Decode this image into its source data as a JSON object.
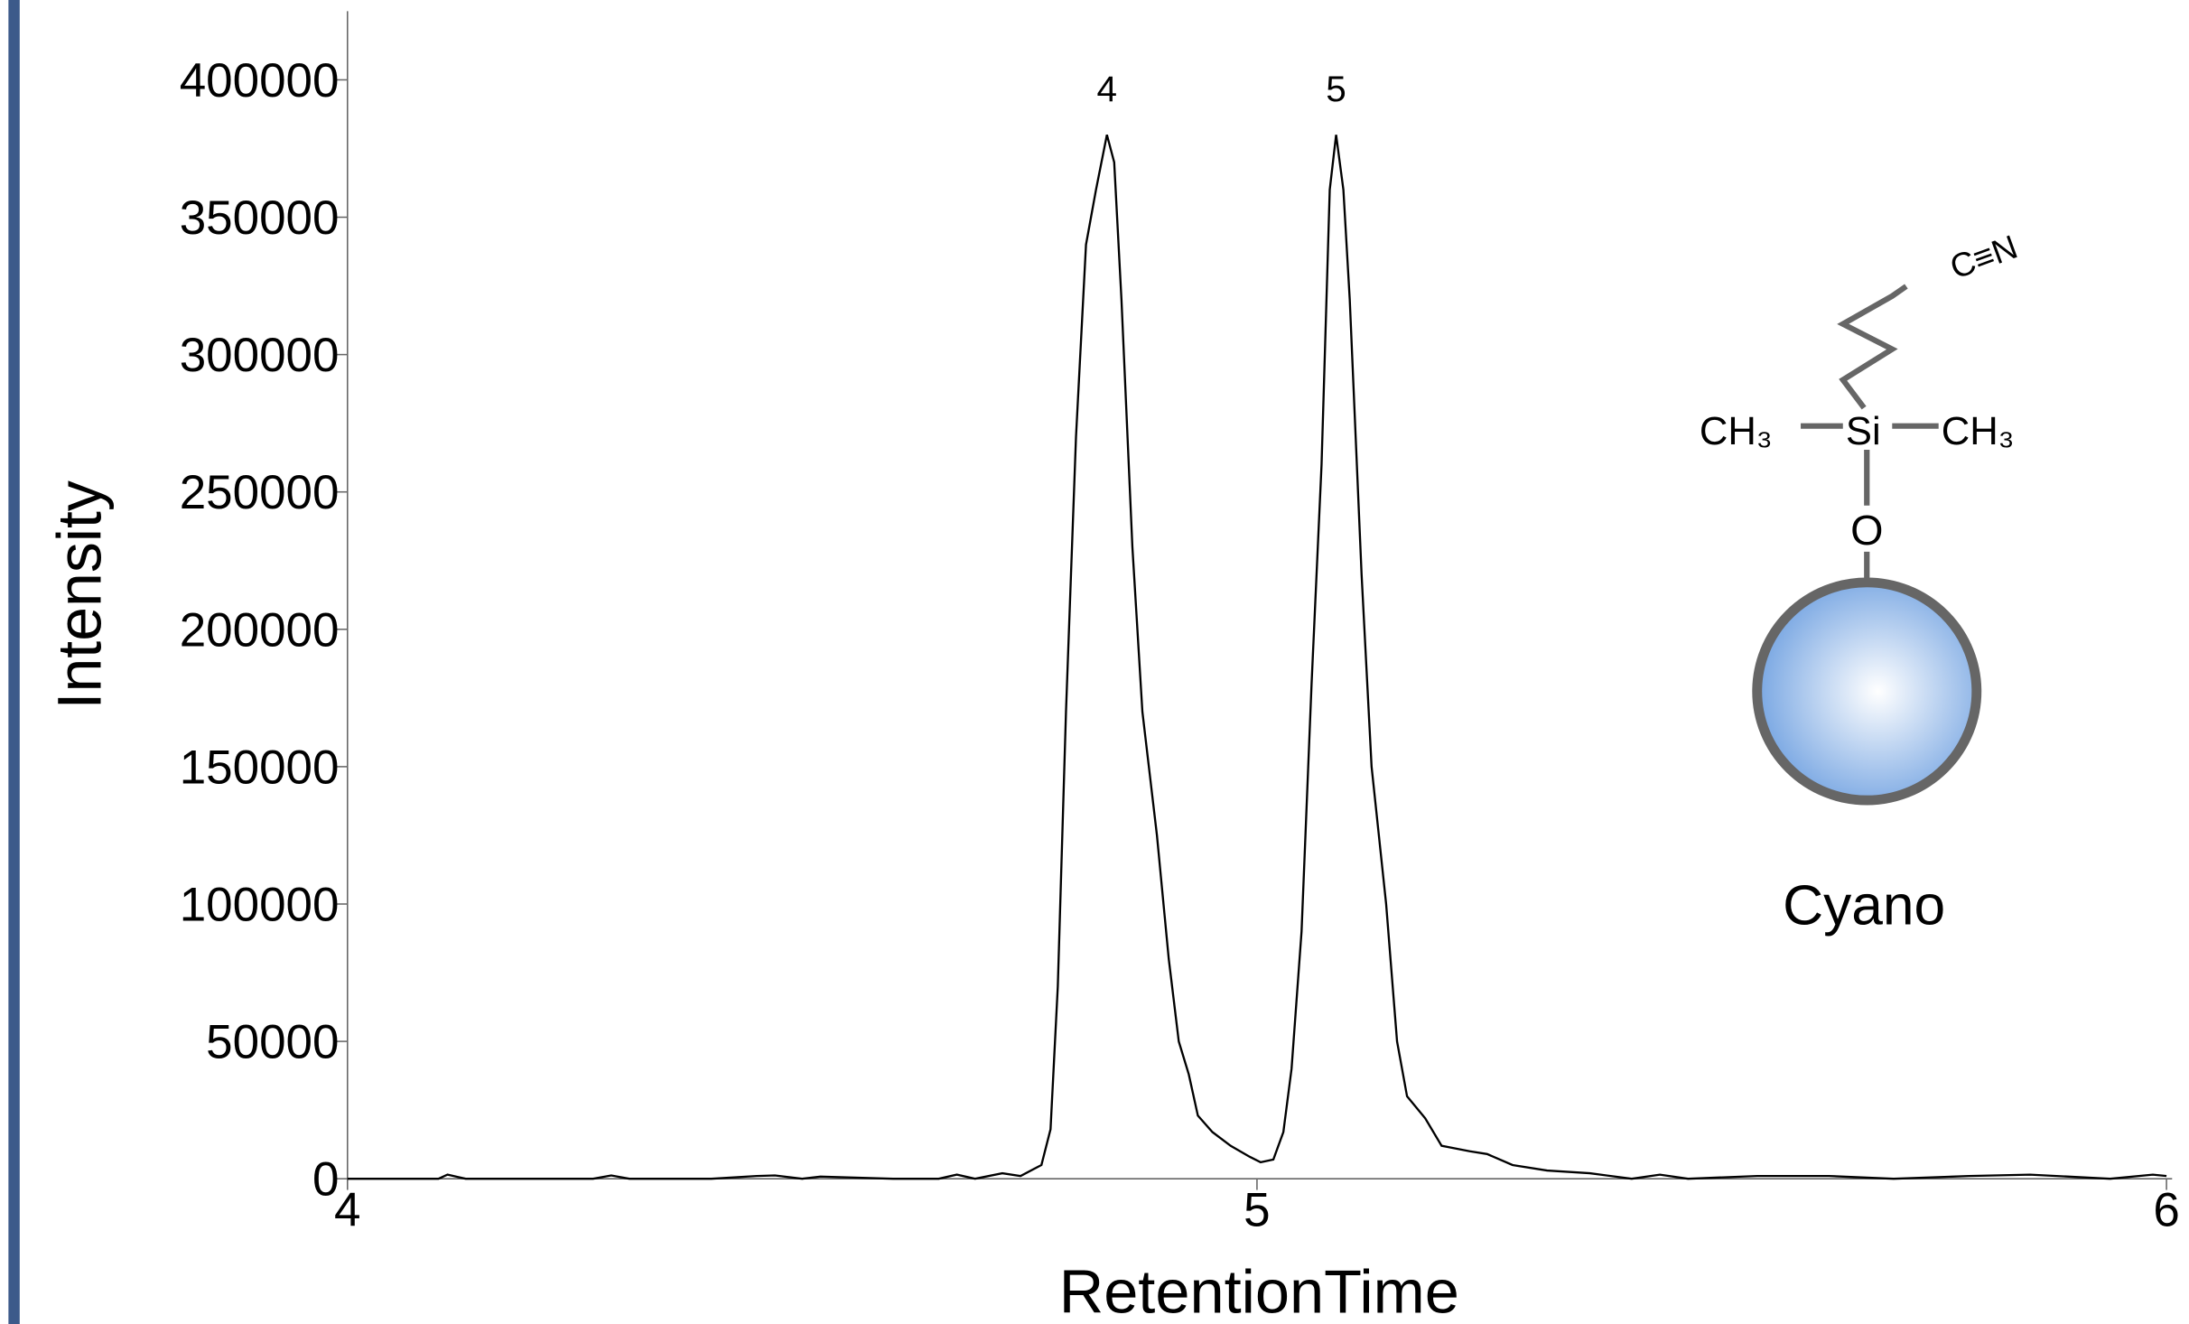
{
  "chart_data": {
    "type": "line",
    "x_label": "RetentionTime",
    "y_label": "Intensity",
    "xlim": [
      4,
      6
    ],
    "ylim": [
      0,
      425000
    ],
    "xticks": [
      4,
      5,
      6
    ],
    "yticks": [
      0,
      50000,
      100000,
      150000,
      200000,
      250000,
      300000,
      350000,
      400000
    ],
    "series": [
      {
        "color": "#000000",
        "x": [
          4.0,
          4.1,
          4.11,
          4.13,
          4.27,
          4.29,
          4.31,
          4.4,
          4.45,
          4.47,
          4.5,
          4.52,
          4.6,
          4.65,
          4.67,
          4.69,
          4.72,
          4.74,
          4.763,
          4.773,
          4.781,
          4.79,
          4.801,
          4.812,
          4.823,
          4.835,
          4.843,
          4.851,
          4.863,
          4.874,
          4.89,
          4.903,
          4.914,
          4.925,
          4.935,
          4.951,
          4.971,
          4.992,
          5.004,
          5.018,
          5.029,
          5.038,
          5.049,
          5.06,
          5.071,
          5.08,
          5.087,
          5.095,
          5.102,
          5.115,
          5.126,
          5.142,
          5.154,
          5.165,
          5.185,
          5.203,
          5.234,
          5.253,
          5.281,
          5.319,
          5.366,
          5.412,
          5.443,
          5.474,
          5.55,
          5.629,
          5.7,
          5.783,
          5.85,
          5.938,
          5.985,
          6.0
        ],
        "values": [
          0,
          0,
          1500,
          0,
          0,
          1200,
          0,
          0,
          1000,
          1200,
          0,
          800,
          0,
          0,
          1500,
          0,
          2000,
          1000,
          5000,
          18000,
          70000,
          170000,
          270000,
          340000,
          360000,
          380000,
          370000,
          320000,
          230000,
          170000,
          125000,
          80000,
          50000,
          38000,
          23000,
          17000,
          12000,
          8000,
          6000,
          7000,
          17000,
          40000,
          90000,
          180000,
          260000,
          360000,
          380000,
          360000,
          320000,
          220000,
          150000,
          100000,
          50000,
          30000,
          22000,
          12000,
          10000,
          9000,
          5000,
          3000,
          2000,
          0,
          1500,
          0,
          1000,
          1000,
          0,
          1000,
          1500,
          0,
          1500,
          1000
        ]
      }
    ],
    "annotations": [
      {
        "text": "4",
        "x": 4.835,
        "y": 380000
      },
      {
        "text": "5",
        "x": 5.087,
        "y": 380000
      }
    ],
    "inset_labels": [
      "C≡N",
      "CH₃",
      "Si",
      "CH₃",
      "O",
      "Cyano"
    ]
  }
}
